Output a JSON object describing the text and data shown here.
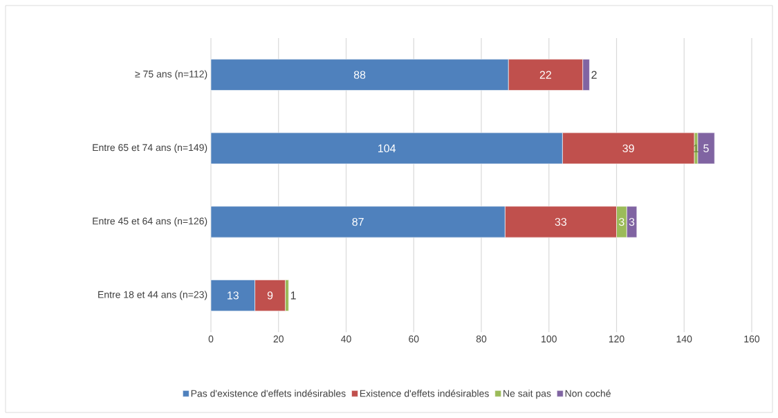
{
  "chart_data": {
    "type": "bar",
    "orientation": "horizontal",
    "stacked": true,
    "categories": [
      "≥ 75 ans (n=112)",
      "Entre 65 et 74 ans (n=149)",
      "Entre 45 et 64 ans (n=126)",
      "Entre 18 et 44 ans (n=23)"
    ],
    "series": [
      {
        "name": "Pas d'existence d'effets indésirables",
        "color": "#4f81bd",
        "values": [
          88,
          104,
          87,
          13
        ]
      },
      {
        "name": "Existence d'effets indésirables",
        "color": "#c0504d",
        "values": [
          22,
          39,
          33,
          9
        ]
      },
      {
        "name": "Ne sait pas",
        "color": "#9bbb59",
        "values": [
          null,
          1,
          3,
          1
        ]
      },
      {
        "name": "Non coché",
        "color": "#8064a2",
        "values": [
          2,
          5,
          3,
          null
        ]
      }
    ],
    "xlim": [
      0,
      160
    ],
    "xticks": [
      0,
      20,
      40,
      60,
      80,
      100,
      120,
      140,
      160
    ],
    "grid": "x",
    "legend": "bottom",
    "data_labels": true
  }
}
